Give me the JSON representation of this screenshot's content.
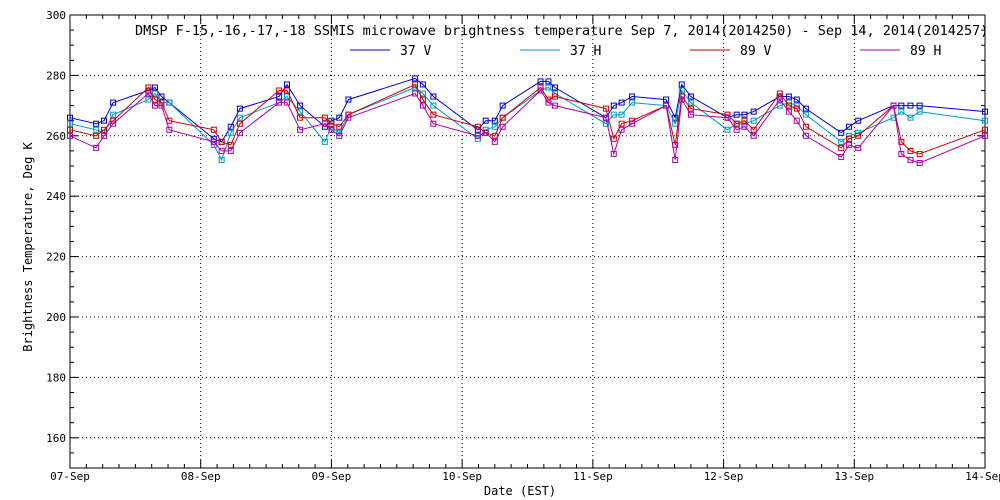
{
  "chart_data": {
    "type": "line",
    "title": "DMSP F-15,-16,-17,-18 SSMIS microwave brightness temperature Sep  7, 2014(2014250) - Sep 14, 2014(2014257)",
    "xlabel": "Date (EST)",
    "ylabel": "Brightness Temperature, Deg K",
    "ylim": [
      150,
      300
    ],
    "yticks": [
      160,
      180,
      200,
      220,
      240,
      260,
      280,
      300
    ],
    "xlim": [
      0,
      7
    ],
    "xtick_labels": [
      "07-Sep",
      "08-Sep",
      "09-Sep",
      "10-Sep",
      "11-Sep",
      "12-Sep",
      "13-Sep",
      "14-Sep"
    ],
    "x_unit": "days since 07-Sep 00:00 EST",
    "grid": true,
    "legend_position": "top-center",
    "marker": "square",
    "series": [
      {
        "name": "37 V",
        "color": "#0000cc",
        "points": [
          [
            0.0,
            266
          ],
          [
            0.2,
            264
          ],
          [
            0.26,
            265
          ],
          [
            0.33,
            271
          ],
          [
            0.6,
            275
          ],
          [
            0.65,
            276
          ],
          [
            0.7,
            273
          ],
          [
            0.76,
            271
          ],
          [
            1.1,
            259
          ],
          [
            1.16,
            258
          ],
          [
            1.23,
            263
          ],
          [
            1.3,
            269
          ],
          [
            1.6,
            273
          ],
          [
            1.66,
            277
          ],
          [
            1.76,
            270
          ],
          [
            1.95,
            263
          ],
          [
            2.0,
            265
          ],
          [
            2.06,
            266
          ],
          [
            2.13,
            272
          ],
          [
            2.64,
            279
          ],
          [
            2.7,
            277
          ],
          [
            2.78,
            273
          ],
          [
            3.12,
            262
          ],
          [
            3.18,
            265
          ],
          [
            3.25,
            265
          ],
          [
            3.31,
            270
          ],
          [
            3.6,
            278
          ],
          [
            3.66,
            278
          ],
          [
            3.71,
            276
          ],
          [
            4.1,
            266
          ],
          [
            4.16,
            270
          ],
          [
            4.22,
            271
          ],
          [
            4.3,
            273
          ],
          [
            4.56,
            272
          ],
          [
            4.63,
            266
          ],
          [
            4.68,
            277
          ],
          [
            4.75,
            273
          ],
          [
            5.03,
            266
          ],
          [
            5.1,
            267
          ],
          [
            5.16,
            267
          ],
          [
            5.23,
            268
          ],
          [
            5.43,
            273
          ],
          [
            5.5,
            273
          ],
          [
            5.56,
            272
          ],
          [
            5.63,
            269
          ],
          [
            5.9,
            261
          ],
          [
            5.96,
            263
          ],
          [
            6.03,
            265
          ],
          [
            6.3,
            270
          ],
          [
            6.36,
            270
          ],
          [
            6.43,
            270
          ],
          [
            6.5,
            270
          ],
          [
            7.0,
            268
          ]
        ]
      },
      {
        "name": "37 H",
        "color": "#0099cc",
        "points": [
          [
            0.0,
            264
          ],
          [
            0.2,
            262
          ],
          [
            0.26,
            261
          ],
          [
            0.33,
            267
          ],
          [
            0.6,
            272
          ],
          [
            0.65,
            274
          ],
          [
            0.7,
            271
          ],
          [
            0.76,
            271
          ],
          [
            1.1,
            257
          ],
          [
            1.16,
            252
          ],
          [
            1.23,
            261
          ],
          [
            1.3,
            266
          ],
          [
            1.6,
            271
          ],
          [
            1.66,
            273
          ],
          [
            1.76,
            268
          ],
          [
            1.95,
            258
          ],
          [
            2.0,
            263
          ],
          [
            2.06,
            261
          ],
          [
            2.13,
            267
          ],
          [
            2.64,
            276
          ],
          [
            2.7,
            274
          ],
          [
            2.78,
            270
          ],
          [
            3.12,
            259
          ],
          [
            3.18,
            262
          ],
          [
            3.25,
            263
          ],
          [
            3.31,
            266
          ],
          [
            3.6,
            275
          ],
          [
            3.66,
            276
          ],
          [
            3.71,
            274
          ],
          [
            4.1,
            264
          ],
          [
            4.16,
            267
          ],
          [
            4.22,
            267
          ],
          [
            4.3,
            271
          ],
          [
            4.56,
            270
          ],
          [
            4.63,
            264
          ],
          [
            4.68,
            275
          ],
          [
            4.75,
            271
          ],
          [
            5.03,
            262
          ],
          [
            5.1,
            264
          ],
          [
            5.16,
            264
          ],
          [
            5.23,
            265
          ],
          [
            5.43,
            270
          ],
          [
            5.5,
            271
          ],
          [
            5.56,
            270
          ],
          [
            5.63,
            267
          ],
          [
            5.9,
            258
          ],
          [
            5.96,
            260
          ],
          [
            6.03,
            261
          ],
          [
            6.3,
            266
          ],
          [
            6.36,
            268
          ],
          [
            6.43,
            266
          ],
          [
            6.5,
            268
          ],
          [
            7.0,
            265
          ]
        ]
      },
      {
        "name": "89 V",
        "color": "#cc0000",
        "points": [
          [
            0.0,
            262
          ],
          [
            0.2,
            260
          ],
          [
            0.26,
            262
          ],
          [
            0.33,
            265
          ],
          [
            0.6,
            276
          ],
          [
            0.65,
            272
          ],
          [
            0.7,
            271
          ],
          [
            0.76,
            265
          ],
          [
            1.1,
            262
          ],
          [
            1.16,
            258
          ],
          [
            1.23,
            257
          ],
          [
            1.3,
            264
          ],
          [
            1.6,
            275
          ],
          [
            1.66,
            275
          ],
          [
            1.76,
            266
          ],
          [
            1.95,
            266
          ],
          [
            2.0,
            264
          ],
          [
            2.06,
            263
          ],
          [
            2.13,
            267
          ],
          [
            2.64,
            277
          ],
          [
            2.7,
            272
          ],
          [
            2.78,
            267
          ],
          [
            3.12,
            263
          ],
          [
            3.18,
            261
          ],
          [
            3.25,
            260
          ],
          [
            3.31,
            266
          ],
          [
            3.6,
            276
          ],
          [
            3.66,
            272
          ],
          [
            3.71,
            273
          ],
          [
            4.1,
            269
          ],
          [
            4.16,
            259
          ],
          [
            4.22,
            264
          ],
          [
            4.3,
            265
          ],
          [
            4.56,
            270
          ],
          [
            4.63,
            257
          ],
          [
            4.68,
            273
          ],
          [
            4.75,
            269
          ],
          [
            5.03,
            267
          ],
          [
            5.1,
            264
          ],
          [
            5.16,
            265
          ],
          [
            5.23,
            262
          ],
          [
            5.43,
            274
          ],
          [
            5.5,
            270
          ],
          [
            5.56,
            269
          ],
          [
            5.63,
            263
          ],
          [
            5.9,
            256
          ],
          [
            5.96,
            259
          ],
          [
            6.03,
            260
          ],
          [
            6.3,
            270
          ],
          [
            6.36,
            258
          ],
          [
            6.43,
            255
          ],
          [
            6.5,
            254
          ],
          [
            7.0,
            262
          ]
        ]
      },
      {
        "name": "89 H",
        "color": "#aa00aa",
        "points": [
          [
            0.0,
            260
          ],
          [
            0.2,
            256
          ],
          [
            0.26,
            260
          ],
          [
            0.33,
            264
          ],
          [
            0.6,
            274
          ],
          [
            0.65,
            270
          ],
          [
            0.7,
            270
          ],
          [
            0.76,
            262
          ],
          [
            1.1,
            258
          ],
          [
            1.16,
            255
          ],
          [
            1.23,
            255
          ],
          [
            1.3,
            261
          ],
          [
            1.6,
            271
          ],
          [
            1.66,
            271
          ],
          [
            1.76,
            262
          ],
          [
            1.95,
            264
          ],
          [
            2.0,
            262
          ],
          [
            2.06,
            260
          ],
          [
            2.13,
            266
          ],
          [
            2.64,
            274
          ],
          [
            2.7,
            270
          ],
          [
            2.78,
            264
          ],
          [
            3.12,
            260
          ],
          [
            3.18,
            261
          ],
          [
            3.25,
            258
          ],
          [
            3.31,
            263
          ],
          [
            3.6,
            275
          ],
          [
            3.66,
            271
          ],
          [
            3.71,
            270
          ],
          [
            4.1,
            266
          ],
          [
            4.16,
            254
          ],
          [
            4.22,
            262
          ],
          [
            4.3,
            264
          ],
          [
            4.56,
            270
          ],
          [
            4.63,
            252
          ],
          [
            4.68,
            272
          ],
          [
            4.75,
            267
          ],
          [
            5.03,
            266
          ],
          [
            5.1,
            262
          ],
          [
            5.16,
            263
          ],
          [
            5.23,
            260
          ],
          [
            5.43,
            272
          ],
          [
            5.5,
            268
          ],
          [
            5.56,
            265
          ],
          [
            5.63,
            260
          ],
          [
            5.9,
            253
          ],
          [
            5.96,
            257
          ],
          [
            6.03,
            256
          ],
          [
            6.3,
            270
          ],
          [
            6.36,
            254
          ],
          [
            6.43,
            252
          ],
          [
            6.5,
            251
          ],
          [
            7.0,
            260
          ]
        ]
      }
    ]
  }
}
